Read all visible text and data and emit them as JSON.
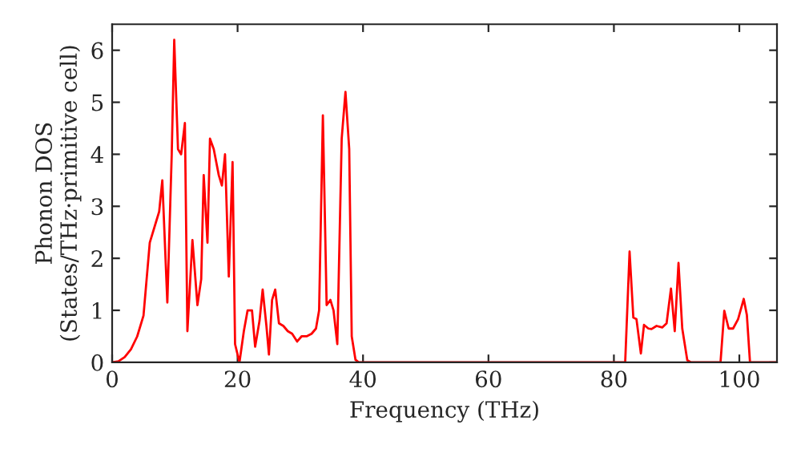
{
  "chart_data": {
    "type": "line",
    "xlabel": "Frequency (THz)",
    "ylabel": "Phonon DOS\n(States/THz·primitive cell)",
    "xlim": [
      0,
      106
    ],
    "ylim": [
      0,
      6.5
    ],
    "xticks": [
      0,
      20,
      40,
      60,
      80,
      100
    ],
    "yticks": [
      0,
      1,
      2,
      3,
      4,
      5,
      6
    ],
    "grid": false,
    "legend": false,
    "series": [
      {
        "color": "#ff0000",
        "x": [
          0,
          1,
          2,
          3,
          4,
          5,
          6,
          7,
          7.5,
          8,
          8.8,
          9.5,
          9.9,
          10.5,
          11,
          11.6,
          12,
          12.8,
          13.6,
          14.2,
          14.6,
          15.2,
          15.6,
          16.2,
          17,
          17.5,
          18,
          18.6,
          19.2,
          19.6,
          20.3,
          21,
          21.6,
          22.3,
          22.8,
          23.5,
          24,
          24.6,
          25,
          25.5,
          26,
          26.6,
          27.3,
          28,
          28.7,
          29.5,
          30.2,
          31,
          31.8,
          32.5,
          33,
          33.6,
          34.2,
          34.8,
          35.3,
          35.9,
          36.6,
          37.2,
          37.8,
          38.2,
          38.8,
          39.3,
          81.8,
          82.5,
          83.1,
          83.6,
          84.3,
          84.8,
          85.5,
          86,
          86.8,
          87.7,
          88.4,
          89.1,
          89.7,
          90.3,
          90.9,
          91.7,
          92.3,
          97,
          97.6,
          98.3,
          99,
          99.8,
          100.7,
          101.2,
          101.7,
          106
        ],
        "values": [
          0,
          0.02,
          0.1,
          0.25,
          0.5,
          0.9,
          2.3,
          2.7,
          2.9,
          3.5,
          1.15,
          4.0,
          6.2,
          4.1,
          4.0,
          4.6,
          0.6,
          2.35,
          1.1,
          1.6,
          3.6,
          2.3,
          4.3,
          4.1,
          3.6,
          3.4,
          4.0,
          1.65,
          3.85,
          0.35,
          0,
          0.6,
          1.0,
          1.0,
          0.3,
          0.8,
          1.4,
          0.7,
          0.15,
          1.2,
          1.4,
          0.75,
          0.7,
          0.6,
          0.55,
          0.4,
          0.5,
          0.5,
          0.55,
          0.65,
          1.0,
          4.75,
          1.1,
          1.2,
          1.0,
          0.35,
          4.3,
          5.2,
          4.1,
          0.5,
          0.05,
          0,
          0,
          2.13,
          0.86,
          0.83,
          0.17,
          0.72,
          0.65,
          0.64,
          0.7,
          0.67,
          0.75,
          1.42,
          0.6,
          1.91,
          0.65,
          0.04,
          0,
          0,
          0.99,
          0.65,
          0.65,
          0.83,
          1.22,
          0.91,
          0,
          0
        ]
      }
    ]
  }
}
